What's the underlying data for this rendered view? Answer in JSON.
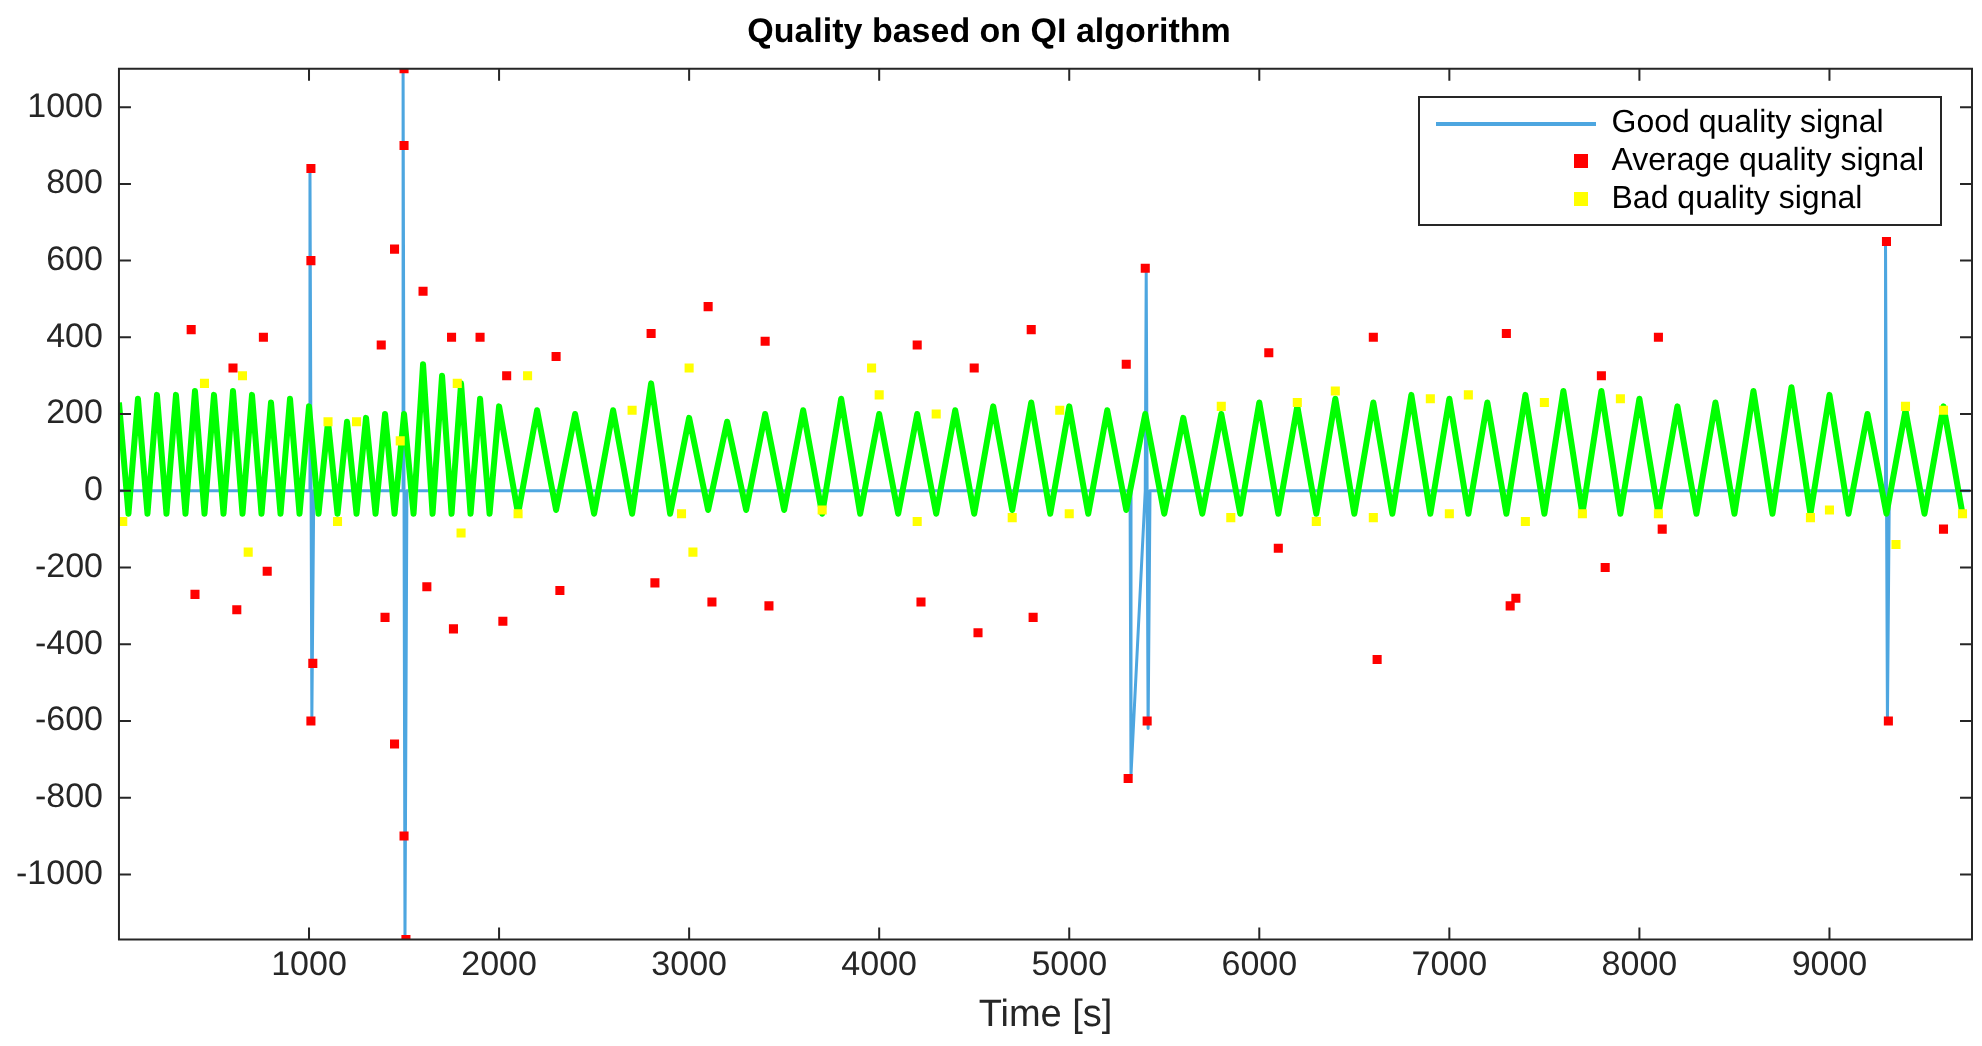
{
  "chart_data": {
    "type": "line",
    "title": "Quality based on QI algorithm",
    "xlabel": "Time [s]",
    "xlim": [
      0,
      9750
    ],
    "ylim": [
      -1170,
      1100
    ],
    "xticks": [
      1000,
      2000,
      3000,
      4000,
      5000,
      6000,
      7000,
      8000,
      9000
    ],
    "yticks": [
      -1000,
      -800,
      -600,
      -400,
      -200,
      0,
      200,
      400,
      600,
      800,
      1000
    ],
    "grid": false,
    "legend": "top right",
    "series": [
      {
        "type": "line",
        "color": "#00ff00",
        "x": [
          0,
          50,
          100,
          150,
          200,
          250,
          300,
          350,
          400,
          450,
          500,
          550,
          600,
          650,
          700,
          750,
          800,
          850,
          900,
          950,
          1000,
          1050,
          1100,
          1150,
          1200,
          1250,
          1300,
          1350,
          1400,
          1450,
          1500,
          1550,
          1600,
          1650,
          1700,
          1750,
          1800,
          1850,
          1900,
          1950,
          2000,
          2100,
          2200,
          2300,
          2400,
          2500,
          2600,
          2700,
          2800,
          2900,
          3000,
          3100,
          3200,
          3300,
          3400,
          3500,
          3600,
          3700,
          3800,
          3900,
          4000,
          4100,
          4200,
          4300,
          4400,
          4500,
          4600,
          4700,
          4800,
          4900,
          5000,
          5100,
          5200,
          5300,
          5400,
          5500,
          5600,
          5700,
          5800,
          5900,
          6000,
          6100,
          6200,
          6300,
          6400,
          6500,
          6600,
          6700,
          6800,
          6900,
          7000,
          7100,
          7200,
          7300,
          7400,
          7500,
          7600,
          7700,
          7800,
          7900,
          8000,
          8100,
          8200,
          8300,
          8400,
          8500,
          8600,
          8700,
          8800,
          8900,
          9000,
          9100,
          9200,
          9300,
          9400,
          9500,
          9600,
          9700
        ],
        "values": [
          230,
          -60,
          240,
          -60,
          250,
          -60,
          250,
          -60,
          260,
          -60,
          250,
          -60,
          260,
          -60,
          250,
          -60,
          230,
          -60,
          240,
          -60,
          220,
          -60,
          180,
          -60,
          180,
          -60,
          190,
          -60,
          200,
          -60,
          200,
          -60,
          330,
          -60,
          300,
          -60,
          280,
          -60,
          240,
          -60,
          220,
          -60,
          210,
          -50,
          200,
          -60,
          210,
          -60,
          280,
          -60,
          190,
          -50,
          180,
          -50,
          200,
          -50,
          210,
          -60,
          240,
          -60,
          200,
          -60,
          200,
          -60,
          210,
          -60,
          220,
          -50,
          230,
          -60,
          220,
          -60,
          210,
          -50,
          200,
          -60,
          190,
          -60,
          200,
          -60,
          230,
          -60,
          220,
          -60,
          240,
          -60,
          230,
          -60,
          250,
          -60,
          240,
          -60,
          230,
          -60,
          250,
          -60,
          260,
          -60,
          260,
          -60,
          240,
          -60,
          220,
          -60,
          230,
          -60,
          260,
          -60,
          270,
          -60,
          250,
          -60,
          200,
          -60,
          210,
          -60,
          220,
          -60
        ]
      },
      {
        "type": "line",
        "name": "Good quality signal",
        "color": "#4da6e0",
        "x": [
          0,
          1000,
          1005,
          1015,
          1025,
          1490,
          1495,
          1505,
          1515,
          5320,
          5325,
          5400,
          5405,
          5415,
          5425,
          9290,
          9295,
          9305,
          9315,
          9740
        ],
        "values": [
          0,
          0,
          840,
          -590,
          0,
          0,
          1100,
          -1170,
          0,
          0,
          -740,
          0,
          570,
          -620,
          0,
          0,
          650,
          -600,
          0,
          0
        ]
      },
      {
        "type": "scatter",
        "name": "Average quality signal",
        "color": "#ff0000",
        "marker": "square",
        "x": [
          380,
          400,
          600,
          620,
          760,
          780,
          1010,
          1010,
          1010,
          1020,
          1380,
          1400,
          1450,
          1450,
          1500,
          1500,
          1500,
          1510,
          1600,
          1620,
          1750,
          1760,
          1900,
          2020,
          2040,
          2300,
          2320,
          2800,
          2820,
          3100,
          3120,
          3400,
          3420,
          4200,
          4220,
          4500,
          4520,
          4800,
          4810,
          5300,
          5310,
          5400,
          5410,
          6050,
          6100,
          6600,
          6620,
          7300,
          7320,
          7350,
          7800,
          7820,
          8100,
          8120,
          9300,
          9310,
          9600
        ],
        "values": [
          420,
          -270,
          320,
          -310,
          400,
          -210,
          840,
          600,
          -600,
          -450,
          380,
          -330,
          630,
          -660,
          1100,
          900,
          -900,
          -1170,
          520,
          -250,
          400,
          -360,
          400,
          -340,
          300,
          350,
          -260,
          410,
          -240,
          480,
          -290,
          390,
          -300,
          380,
          -290,
          320,
          -370,
          420,
          -330,
          330,
          -750,
          580,
          -600,
          360,
          -150,
          400,
          -440,
          410,
          -300,
          -280,
          300,
          -200,
          400,
          -100,
          650,
          -600,
          -100
        ]
      },
      {
        "type": "scatter",
        "name": "Bad quality signal",
        "color": "#ffff00",
        "marker": "square",
        "x": [
          20,
          450,
          650,
          680,
          1100,
          1150,
          1250,
          1480,
          1780,
          1800,
          2100,
          2150,
          2700,
          2960,
          3000,
          3020,
          3700,
          3960,
          4000,
          4200,
          4300,
          4700,
          4950,
          5000,
          5800,
          5850,
          6200,
          6300,
          6400,
          6600,
          6900,
          7000,
          7100,
          7400,
          7500,
          7700,
          7900,
          8100,
          8900,
          9000,
          9350,
          9400,
          9600,
          9700
        ],
        "values": [
          -80,
          280,
          300,
          -160,
          180,
          -80,
          180,
          130,
          280,
          -110,
          -60,
          300,
          210,
          -60,
          320,
          -160,
          -50,
          320,
          250,
          -80,
          200,
          -70,
          210,
          -60,
          220,
          -70,
          230,
          -80,
          260,
          -70,
          240,
          -60,
          250,
          -80,
          230,
          -60,
          240,
          -60,
          -70,
          -50,
          -140,
          220,
          210,
          -60
        ]
      }
    ]
  }
}
